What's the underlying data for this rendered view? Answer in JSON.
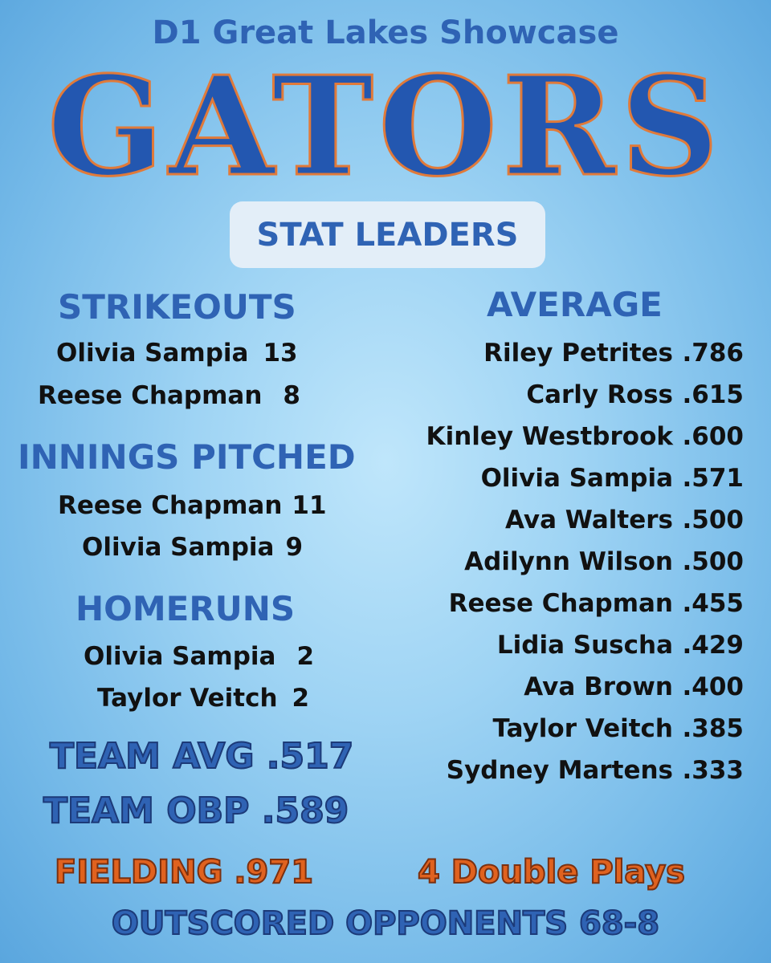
{
  "header": {
    "showcase": "D1 Great Lakes Showcase",
    "team": "GATORS",
    "subtitle": "STAT LEADERS"
  },
  "strikeouts": {
    "title": "STRIKEOUTS",
    "rows": [
      {
        "name": "Olivia Sampia",
        "value": "13"
      },
      {
        "name": "Reese Chapman",
        "value": "8"
      }
    ]
  },
  "innings": {
    "title": "INNINGS PITCHED",
    "rows": [
      {
        "name": "Reese Chapman",
        "value": "11"
      },
      {
        "name": "Olivia Sampia",
        "value": "9"
      }
    ]
  },
  "homeruns": {
    "title": "HOMERUNS",
    "rows": [
      {
        "name": "Olivia Sampia",
        "value": "2"
      },
      {
        "name": "Taylor Veitch",
        "value": "2"
      }
    ]
  },
  "average": {
    "title": "AVERAGE",
    "rows": [
      {
        "name": "Riley Petrites",
        "value": ".786"
      },
      {
        "name": "Carly Ross",
        "value": ".615"
      },
      {
        "name": "Kinley Westbrook",
        "value": ".600"
      },
      {
        "name": "Olivia Sampia",
        "value": ".571"
      },
      {
        "name": "Ava Walters",
        "value": ".500"
      },
      {
        "name": "Adilynn Wilson",
        "value": ".500"
      },
      {
        "name": "Reese Chapman",
        "value": ".455"
      },
      {
        "name": "Lidia Suscha",
        "value": ".429"
      },
      {
        "name": "Ava Brown",
        "value": ".400"
      },
      {
        "name": "Taylor Veitch",
        "value": ".385"
      },
      {
        "name": "Sydney Martens",
        "value": ".333"
      }
    ]
  },
  "team_stats": {
    "avg": "TEAM AVG  .517",
    "obp": "TEAM OBP  .589",
    "fielding": "FIELDING  .971",
    "double_plays": "4 Double Plays",
    "outscored": "OUTSCORED OPPONENTS 68-8"
  },
  "colors": {
    "primary_blue": "#2f63b4",
    "accent_orange": "#e0621f",
    "background": "#9fd4f4"
  }
}
